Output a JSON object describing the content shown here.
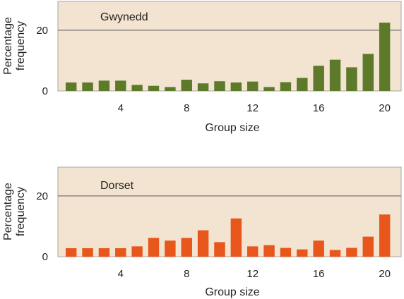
{
  "chart_data": [
    {
      "type": "bar",
      "title": "Gwynedd",
      "xlabel": "Group size",
      "ylabel": "Percentage frequency",
      "x": [
        1,
        2,
        3,
        4,
        5,
        6,
        7,
        8,
        9,
        10,
        11,
        12,
        13,
        14,
        15,
        16,
        17,
        18,
        19,
        20
      ],
      "values": [
        2.8,
        2.8,
        3.4,
        3.4,
        2.0,
        1.7,
        1.3,
        3.7,
        2.5,
        3.2,
        2.8,
        3.1,
        1.3,
        2.9,
        4.3,
        8.3,
        10.3,
        7.8,
        12.2,
        22.5
      ],
      "xticks": [
        4,
        8,
        12,
        16,
        20
      ],
      "yticks": [
        0,
        20
      ],
      "xlim": [
        0.2,
        21.0
      ],
      "ylim": [
        0,
        29.5
      ],
      "grid": "horizontal line at 20",
      "colors": {
        "bar": "#5c7a29",
        "panel": "#f2e4d0",
        "frame": "#a6a6a6"
      }
    },
    {
      "type": "bar",
      "title": "Dorset",
      "xlabel": "Group size",
      "ylabel": "Percentage frequency",
      "x": [
        1,
        2,
        3,
        4,
        5,
        6,
        7,
        8,
        9,
        10,
        11,
        12,
        13,
        14,
        15,
        16,
        17,
        18,
        19,
        20
      ],
      "values": [
        2.8,
        2.8,
        2.8,
        2.8,
        3.4,
        6.2,
        5.3,
        6.2,
        8.7,
        4.8,
        12.6,
        3.4,
        3.8,
        2.9,
        2.4,
        5.3,
        2.2,
        2.9,
        6.6,
        13.9
      ],
      "xticks": [
        4,
        8,
        12,
        16,
        20
      ],
      "yticks": [
        0,
        20
      ],
      "xlim": [
        0.2,
        21.0
      ],
      "ylim": [
        0,
        29.5
      ],
      "grid": "horizontal line at 20",
      "colors": {
        "bar": "#e8561b",
        "panel": "#f2e4d0",
        "frame": "#a6a6a6"
      }
    }
  ]
}
